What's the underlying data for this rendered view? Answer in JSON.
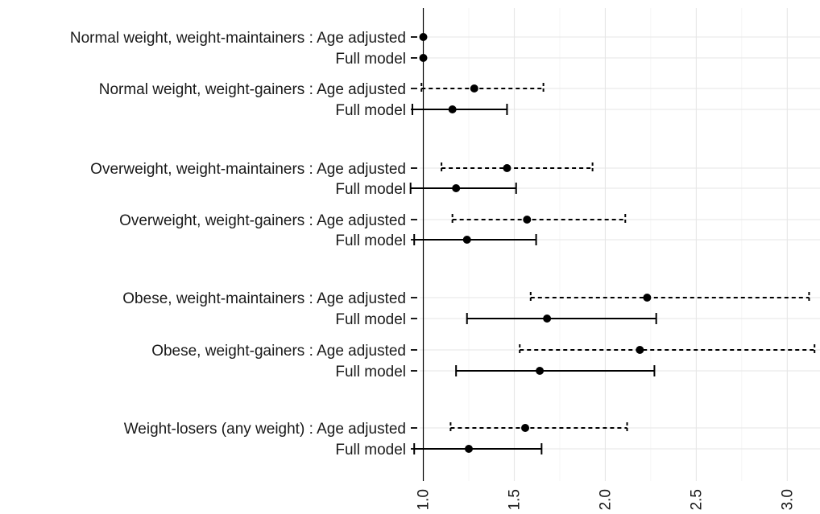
{
  "chart_data": {
    "type": "forest",
    "title": "",
    "xlabel": "",
    "ylabel": "",
    "xlim": [
      0.98,
      3.18
    ],
    "x_ticks": [
      1.0,
      1.5,
      2.0,
      2.5,
      3.0
    ],
    "x_tick_labels": [
      "1.0",
      "1.5",
      "2.0",
      "2.5",
      "3.0"
    ],
    "reference_line": 1.0,
    "grid": true,
    "series": [
      {
        "model": "age",
        "linestyle": "dashed"
      },
      {
        "model": "full",
        "linestyle": "solid"
      }
    ],
    "rows": [
      {
        "label": "Normal weight, weight-maintainers : Age adjusted",
        "model": "age",
        "estimate": 1.0,
        "lower": null,
        "upper": null
      },
      {
        "label": "Full model",
        "model": "full",
        "estimate": 1.0,
        "lower": null,
        "upper": null
      },
      {
        "label": "Normal weight, weight-gainers : Age adjusted",
        "model": "age",
        "estimate": 1.28,
        "lower": 0.99,
        "upper": 1.66
      },
      {
        "label": "Full model",
        "model": "full",
        "estimate": 1.16,
        "lower": 0.94,
        "upper": 1.46
      },
      {
        "label": "Overweight, weight-maintainers : Age adjusted",
        "model": "age",
        "estimate": 1.46,
        "lower": 1.1,
        "upper": 1.93
      },
      {
        "label": "Full model",
        "model": "full",
        "estimate": 1.18,
        "lower": 0.93,
        "upper": 1.51
      },
      {
        "label": "Overweight, weight-gainers : Age adjusted",
        "model": "age",
        "estimate": 1.57,
        "lower": 1.16,
        "upper": 2.11
      },
      {
        "label": "Full model",
        "model": "full",
        "estimate": 1.24,
        "lower": 0.95,
        "upper": 1.62
      },
      {
        "label": "Obese, weight-maintainers : Age adjusted",
        "model": "age",
        "estimate": 2.23,
        "lower": 1.59,
        "upper": 3.12
      },
      {
        "label": "Full model",
        "model": "full",
        "estimate": 1.68,
        "lower": 1.24,
        "upper": 2.28
      },
      {
        "label": "Obese, weight-gainers : Age adjusted",
        "model": "age",
        "estimate": 2.19,
        "lower": 1.53,
        "upper": 3.15
      },
      {
        "label": "Full model",
        "model": "full",
        "estimate": 1.64,
        "lower": 1.18,
        "upper": 2.27
      },
      {
        "label": "Weight-losers (any weight) : Age adjusted",
        "model": "age",
        "estimate": 1.56,
        "lower": 1.15,
        "upper": 2.12
      },
      {
        "label": "Full model",
        "model": "full",
        "estimate": 1.25,
        "lower": 0.95,
        "upper": 1.65
      }
    ]
  }
}
